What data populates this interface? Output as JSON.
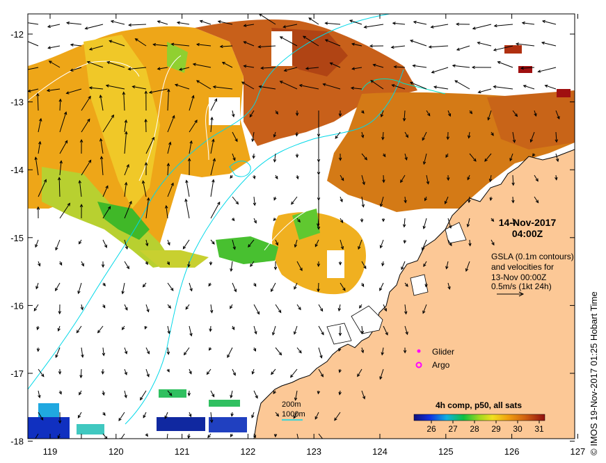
{
  "map": {
    "timestamp_date": "14-Nov-2017",
    "timestamp_time": "04:00Z",
    "legend_text": [
      "GSLA (0.1m contours)",
      "and velocities for",
      "13-Nov 00:00Z",
      "0.5m/s (1kt 24h)"
    ],
    "markers": {
      "glider": "Glider",
      "argo": "Argo"
    },
    "bathymetry": {
      "contour_200": "200m",
      "contour_1000": "1000m"
    },
    "colorbar": {
      "title": "4h comp, p50, all sats",
      "ticks": [
        "26",
        "27",
        "28",
        "29",
        "30",
        "31"
      ]
    },
    "credit": "© IMOS 19-Nov-2017 01:25 Hobart Time",
    "x_ticks": [
      "119",
      "120",
      "121",
      "122",
      "123",
      "124",
      "125",
      "126",
      "127"
    ],
    "y_ticks": [
      "-12",
      "-13",
      "-14",
      "-15",
      "-16",
      "-17",
      "-18"
    ],
    "colors": {
      "land": "#fcc896",
      "coast": "#000000",
      "bathy_200": "#00e0c0",
      "bathy_1000": "#00d8e8",
      "sst_warm": "#e08a10",
      "sst_hot": "#b84a10",
      "sst_mid": "#f0c020",
      "sst_cool": "#40b820",
      "glider": "#ff00ff",
      "argo": "#ff00ff"
    }
  }
}
